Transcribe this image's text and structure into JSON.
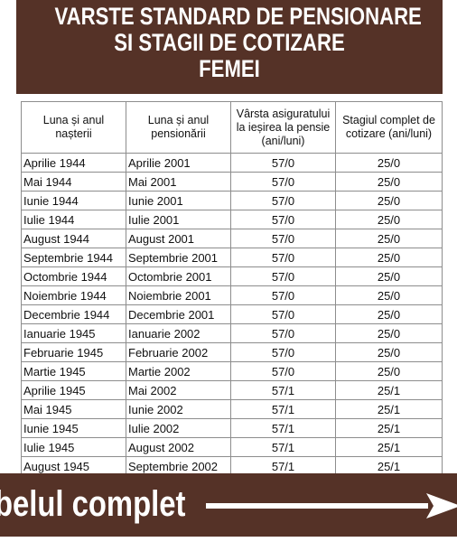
{
  "header": {
    "line1": "VARSTE STANDARD DE PENSIONARE",
    "line2": "SI STAGII DE COTIZARE",
    "line3": "FEMEI"
  },
  "table": {
    "columns": [
      "Luna și anul nașterii",
      "Luna și anul pensionării",
      "Vârsta asiguratului la ieșirea la pensie (ani/luni)",
      "Stagiul complet de cotizare (ani/luni)"
    ],
    "rows": [
      [
        "Aprilie 1944",
        "Aprilie 2001",
        "57/0",
        "25/0"
      ],
      [
        "Mai 1944",
        "Mai 2001",
        "57/0",
        "25/0"
      ],
      [
        "Iunie 1944",
        "Iunie 2001",
        "57/0",
        "25/0"
      ],
      [
        "Iulie 1944",
        "Iulie 2001",
        "57/0",
        "25/0"
      ],
      [
        "August 1944",
        "August 2001",
        "57/0",
        "25/0"
      ],
      [
        "Septembrie 1944",
        "Septembrie 2001",
        "57/0",
        "25/0"
      ],
      [
        "Octombrie 1944",
        "Octombrie 2001",
        "57/0",
        "25/0"
      ],
      [
        "Noiembrie 1944",
        "Noiembrie 2001",
        "57/0",
        "25/0"
      ],
      [
        "Decembrie 1944",
        "Decembrie 2001",
        "57/0",
        "25/0"
      ],
      [
        "Ianuarie 1945",
        "Ianuarie 2002",
        "57/0",
        "25/0"
      ],
      [
        "Februarie 1945",
        "Februarie 2002",
        "57/0",
        "25/0"
      ],
      [
        "Martie 1945",
        "Martie 2002",
        "57/0",
        "25/0"
      ],
      [
        "Aprilie 1945",
        "Mai 2002",
        "57/1",
        "25/1"
      ],
      [
        "Mai 1945",
        "Iunie 2002",
        "57/1",
        "25/1"
      ],
      [
        "Iunie 1945",
        "Iulie 2002",
        "57/1",
        "25/1"
      ],
      [
        "Iulie 1945",
        "August 2002",
        "57/1",
        "25/1"
      ],
      [
        "August 1945",
        "Septembrie 2002",
        "57/1",
        "25/1"
      ]
    ]
  },
  "banner": {
    "text": "belul complet",
    "arrow_icon": "right-arrow-icon"
  },
  "colors": {
    "brand_brown": "#553227",
    "text_white": "#ffffff",
    "grid_gray": "#8d8d8d"
  }
}
